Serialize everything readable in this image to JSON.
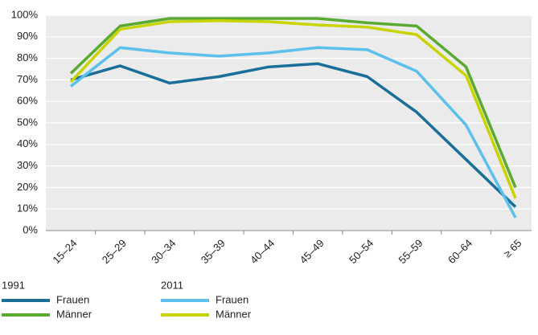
{
  "chart_data": {
    "type": "line",
    "categories": [
      "15–24",
      "25–29",
      "30–34",
      "35–39",
      "40–44",
      "45–49",
      "50–54",
      "55–59",
      "60–64",
      "≥ 65"
    ],
    "legend_groups": [
      "1991",
      "2011"
    ],
    "series": [
      {
        "name": "Frauen",
        "color": "#1a6e9a",
        "values": [
          70,
          76.5,
          68.5,
          71.5,
          76,
          77.5,
          71.5,
          55,
          33,
          11
        ]
      },
      {
        "name": "Männer",
        "color": "#5aaa32",
        "values": [
          73,
          95,
          98.5,
          98.5,
          98.5,
          98.5,
          96.5,
          95,
          76,
          20
        ]
      },
      {
        "name": "Frauen",
        "color": "#5bc0eb",
        "values": [
          67,
          85,
          82.5,
          81,
          82.5,
          85,
          84,
          74,
          49,
          6
        ]
      },
      {
        "name": "Männer",
        "color": "#c8d400",
        "values": [
          69,
          93.5,
          97,
          97.5,
          97,
          95.5,
          94.5,
          91,
          72,
          15
        ]
      }
    ],
    "ylim": [
      0,
      100
    ],
    "yticks": [
      {
        "value": 0,
        "label": "0%"
      },
      {
        "value": 10,
        "label": "10%"
      },
      {
        "value": 20,
        "label": "20%"
      },
      {
        "value": 30,
        "label": "30%"
      },
      {
        "value": 40,
        "label": "40%"
      },
      {
        "value": 50,
        "label": "50%"
      },
      {
        "value": 60,
        "label": "60%"
      },
      {
        "value": 70,
        "label": "70%"
      },
      {
        "value": 80,
        "label": "80%"
      },
      {
        "value": 90,
        "label": "90%"
      },
      {
        "value": 100,
        "label": "100%"
      }
    ],
    "grid": true
  }
}
